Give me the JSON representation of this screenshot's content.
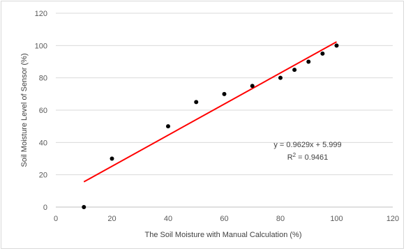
{
  "chart_data": {
    "type": "scatter",
    "xlabel": "The Soil Moisture with Manual Calculation (%)",
    "ylabel": "Soil Moisture Level  of Sensor (%)",
    "xlim": [
      0,
      120
    ],
    "ylim": [
      0,
      120
    ],
    "xticks": [
      0,
      20,
      40,
      60,
      80,
      100,
      120
    ],
    "yticks": [
      0,
      20,
      40,
      60,
      80,
      100,
      120
    ],
    "grid": "horizontal",
    "x": [
      10,
      20,
      40,
      50,
      60,
      70,
      80,
      85,
      90,
      95,
      100
    ],
    "y": [
      0,
      30,
      50,
      65,
      70,
      75,
      80,
      85,
      90,
      95,
      100
    ],
    "trendline": {
      "slope": 0.9629,
      "intercept": 5.999,
      "x_range": [
        10,
        100
      ],
      "color": "#ff0000",
      "equation": "y = 0.9629x + 5.999",
      "r2_label": "R",
      "r2_value": " = 0.9461"
    },
    "marker_color": "#000000"
  }
}
